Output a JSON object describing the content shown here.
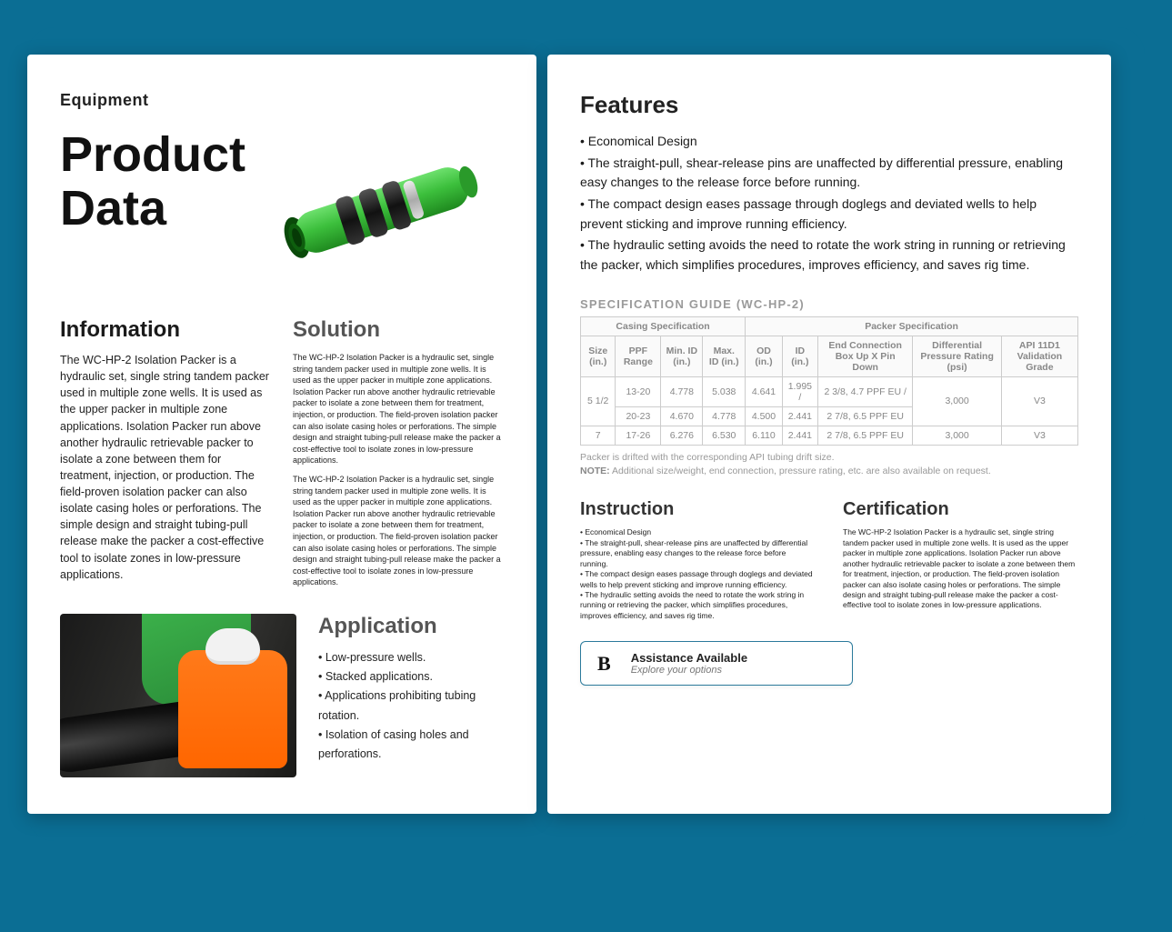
{
  "left": {
    "eyebrow": "Equipment",
    "title": "Product Data",
    "info_h": "Information",
    "info_body": "The WC-HP-2 Isolation Packer is a hydraulic set, single string tandem packer used in multiple zone wells. It is used as the upper packer in multiple zone applications. Isolation Packer run above another hydraulic retrievable packer to isolate a zone between them for treatment, injection, or production. The field-proven isolation packer can also isolate casing holes or perforations. The simple design and straight tubing-pull release make the packer a cost-effective tool to isolate zones in low-pressure applications.",
    "sol_h": "Solution",
    "sol_p1": "The WC-HP-2 Isolation Packer is a hydraulic set, single string tandem packer used in multiple zone wells. It is used as the upper packer in multiple zone applications. Isolation Packer run above another hydraulic retrievable packer to isolate a zone between them for treatment, injection, or production. The field-proven isolation packer can also isolate casing holes or perforations. The simple design and straight tubing-pull release make the packer a cost-effective tool to isolate zones in low-pressure applications.",
    "sol_p2": "The WC-HP-2 Isolation Packer is a hydraulic set, single string tandem packer used in multiple zone wells. It is used as the upper packer in multiple zone applications. Isolation Packer run above another hydraulic retrievable packer to isolate a zone between them for treatment, injection, or production. The field-proven isolation packer can also isolate casing holes or perforations. The simple design and straight tubing-pull release make the packer a cost-effective tool to isolate zones in low-pressure applications.",
    "app_h": "Application",
    "apps": [
      "Low-pressure wells.",
      "Stacked applications.",
      "Applications prohibiting tubing rotation.",
      "Isolation of casing holes and perforations."
    ],
    "packer_colors": {
      "body": "#3cbf3c",
      "dark": "#2a9a2a",
      "band": "#222",
      "steel": "#b8b8b8"
    }
  },
  "right": {
    "features_h": "Features",
    "features": [
      "Economical Design",
      "The straight-pull, shear-release pins are unaffected by differential pressure, enabling easy changes to the release force before running.",
      "The compact design eases passage through doglegs and deviated wells to help prevent sticking and improve running efficiency.",
      "The hydraulic setting avoids the need to rotate the work string in running or retrieving the packer, which simplifies procedures, improves efficiency, and saves rig time."
    ],
    "spec_title": "SPECIFICATION GUIDE (WC-HP-2)",
    "spec": {
      "group_headers": [
        "Casing Specification",
        "Packer Specification"
      ],
      "headers": [
        "Size (in.)",
        "PPF Range",
        "Min. ID (in.)",
        "Max. ID (in.)",
        "OD (in.)",
        "ID (in.)",
        "End Connection Box Up X Pin Down",
        "Differential Pressure Rating (psi)",
        "API 11D1 Validation Grade"
      ],
      "rows": [
        {
          "size": "5 1/2",
          "ppf": "13-20",
          "minid": "4.778",
          "maxid": "5.038",
          "od": "4.641",
          "id": "1.995 /",
          "conn": "2 3/8, 4.7 PPF EU /",
          "psi": "3,000",
          "grade": "V3",
          "size_rowspan": 2,
          "psi_rowspan": 2,
          "grade_rowspan": 2
        },
        {
          "ppf": "20-23",
          "minid": "4.670",
          "maxid": "4.778",
          "od": "4.500",
          "id": "2.441",
          "conn": "2 7/8, 6.5 PPF EU"
        },
        {
          "size": "7",
          "ppf": "17-26",
          "minid": "6.276",
          "maxid": "6.530",
          "od": "6.110",
          "id": "2.441",
          "conn": "2 7/8, 6.5 PPF EU",
          "psi": "3,000",
          "grade": "V3"
        }
      ]
    },
    "note_line1": "Packer is drifted with the corresponding API tubing drift size.",
    "note_label": "NOTE:",
    "note_line2": " Additional size/weight, end connection, pressure rating, etc. are also available on request.",
    "instr_h": "Instruction",
    "instr_items": [
      "Economical Design",
      "The straight-pull, shear-release pins are unaffected by differential pressure, enabling easy changes to the release force before running.",
      "The compact design eases passage through doglegs and deviated wells to help prevent sticking and improve running efficiency.",
      "The hydraulic setting avoids the need to rotate the work string in running or retrieving the packer, which simplifies procedures, improves efficiency, and saves rig time."
    ],
    "cert_h": "Certification",
    "cert_body": "The WC-HP-2 Isolation Packer is a hydraulic set, single string tandem packer used in multiple zone wells. It is used as the upper packer in multiple zone applications. Isolation Packer run above another hydraulic retrievable packer to isolate a zone between them for treatment, injection, or production. The field-proven isolation packer can also isolate casing holes or perforations. The simple design and straight tubing-pull release make the packer a cost-effective tool to isolate zones in low-pressure applications.",
    "assist": {
      "title": "Assistance Available",
      "sub": "Explore your options"
    }
  }
}
